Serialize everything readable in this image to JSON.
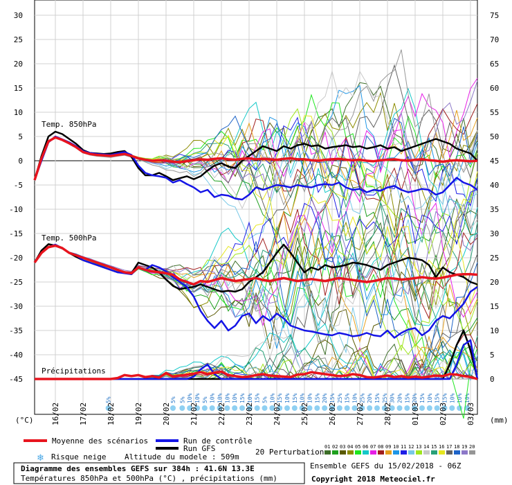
{
  "chart_data": {
    "type": "line",
    "left_axis": {
      "unit": "(°C)",
      "ticks": [
        30,
        25,
        20,
        15,
        10,
        5,
        0,
        -5,
        -10,
        -15,
        -20,
        -25,
        -30,
        -35,
        -40,
        -45
      ]
    },
    "right_axis": {
      "unit": "(mm)",
      "ticks": [
        75,
        70,
        65,
        60,
        55,
        50,
        45,
        40,
        35,
        30,
        25,
        20,
        15,
        10,
        5,
        0
      ]
    },
    "x_axis": {
      "ticks": [
        "16/02",
        "17/02",
        "18/02",
        "19/02",
        "20/02",
        "21/02",
        "22/02",
        "23/02",
        "24/02",
        "25/02",
        "26/02",
        "27/02",
        "28/02",
        "01/03",
        "02/03",
        "03/03"
      ]
    },
    "panel_labels": {
      "t850": "Temp. 850hPa",
      "t500": "Temp. 500hPa",
      "precip": "Précipitations"
    },
    "x_hours": [
      0,
      6,
      12,
      18,
      24,
      30,
      36,
      42,
      48,
      54,
      60,
      66,
      72,
      78,
      84,
      90,
      96,
      102,
      108,
      114,
      120,
      126,
      132,
      138,
      144,
      150,
      156,
      162,
      168,
      174,
      180,
      186,
      192,
      198,
      204,
      210,
      216,
      222,
      228,
      234,
      240,
      246,
      252,
      258,
      264,
      270,
      276,
      282,
      288,
      294,
      300,
      306,
      312,
      318,
      324,
      330,
      336,
      342,
      348,
      354,
      360,
      366,
      372,
      378,
      384
    ],
    "series": [
      {
        "name": "Moyenne des scénarios",
        "panel": "t850",
        "color": "#e8141e",
        "values": [
          -4,
          0.5,
          4,
          4.8,
          4.3,
          3.6,
          2.8,
          1.8,
          1.4,
          1.2,
          1.1,
          1,
          1.2,
          1.4,
          1,
          0.5,
          0.2,
          0,
          0.1,
          0,
          -0.2,
          -0.3,
          -0.1,
          0.1,
          0.3,
          0.2,
          0.4,
          0.5,
          0.3,
          0.2,
          0.4,
          0.5,
          0.3,
          0.4,
          0.3,
          0.2,
          0.4,
          0.5,
          0.3,
          0.3,
          0.1,
          0,
          0.2,
          0.3,
          0.4,
          0.2,
          0.1,
          0.2,
          0,
          -0.1,
          0.1,
          0.2,
          0.3,
          0.1,
          0,
          0.2,
          0.3,
          0.1,
          0,
          -0.2,
          0,
          0.1,
          0,
          -0.1,
          0
        ]
      },
      {
        "name": "Run de contrôle",
        "panel": "t850",
        "color": "#1414e6",
        "values": [
          -4,
          0,
          3.8,
          5,
          4.4,
          3.8,
          3,
          2,
          1.6,
          1.4,
          1.3,
          1.2,
          1.5,
          1.8,
          1.2,
          -1,
          -2.5,
          -3,
          -3.2,
          -3.5,
          -4.5,
          -4,
          -4.8,
          -5.5,
          -6.5,
          -6,
          -7.5,
          -7,
          -7.2,
          -7.8,
          -8,
          -7,
          -5.5,
          -6,
          -5.5,
          -5,
          -5.2,
          -5.5,
          -5,
          -5.3,
          -5.5,
          -5,
          -4.8,
          -5,
          -4.5,
          -5.5,
          -6,
          -5.8,
          -6.5,
          -6,
          -6.2,
          -5.5,
          -5.2,
          -6,
          -6.5,
          -6.2,
          -5.8,
          -6,
          -7,
          -6.5,
          -5,
          -3.5,
          -4.5,
          -5,
          -6
        ]
      },
      {
        "name": "Run GFS",
        "panel": "t850",
        "color": "#000000",
        "values": [
          -4,
          1,
          5,
          6,
          5.5,
          4.5,
          3.5,
          2.2,
          1.6,
          1.5,
          1.4,
          1.5,
          1.8,
          2,
          0.8,
          -1.5,
          -3,
          -3,
          -2.5,
          -3.2,
          -4,
          -3.6,
          -3.2,
          -3.8,
          -3.2,
          -2,
          -1,
          -0.5,
          -1.2,
          -1.5,
          0,
          1,
          2,
          3,
          2.5,
          2,
          3,
          2.5,
          3.2,
          3.5,
          3,
          3.2,
          2.5,
          2.8,
          3,
          3.2,
          2.8,
          3,
          2.5,
          2.8,
          3.2,
          2.5,
          2.8,
          2,
          2.5,
          3,
          3.5,
          4,
          4.5,
          4,
          3.5,
          2.5,
          2,
          1.5,
          0
        ]
      },
      {
        "name": "Moyenne des scénarios",
        "panel": "t500",
        "color": "#e8141e",
        "values": [
          -21,
          -19,
          -17.8,
          -17.5,
          -18,
          -19,
          -19.5,
          -20,
          -20.5,
          -21,
          -21.5,
          -22,
          -22.5,
          -23,
          -23.2,
          -22,
          -22.5,
          -22.8,
          -23,
          -23.2,
          -23.5,
          -24.5,
          -25,
          -25.5,
          -24.8,
          -25,
          -24.6,
          -24.2,
          -24.5,
          -24.8,
          -24.6,
          -24.4,
          -24.2,
          -24.6,
          -24.8,
          -24.5,
          -24.2,
          -24.5,
          -24.8,
          -24.6,
          -24.4,
          -24.6,
          -24.8,
          -24.5,
          -24.2,
          -24.4,
          -24.6,
          -24.8,
          -25,
          -24.8,
          -24.5,
          -24.2,
          -24.3,
          -24.5,
          -24.4,
          -24.2,
          -24,
          -24.2,
          -24.3,
          -24.1,
          -23.8,
          -23.5,
          -23.4,
          -23.4,
          -23.5
        ]
      },
      {
        "name": "Run de contrôle",
        "panel": "t500",
        "color": "#1414e6",
        "values": [
          -21,
          -19,
          -17.8,
          -17.3,
          -18,
          -19,
          -19.5,
          -20.5,
          -21,
          -21.5,
          -22,
          -22.5,
          -23,
          -23.2,
          -23.4,
          -22,
          -22.5,
          -21.5,
          -22,
          -22.8,
          -24,
          -25,
          -26,
          -28,
          -31,
          -33,
          -34.5,
          -33,
          -35,
          -34,
          -32,
          -31.5,
          -33.5,
          -32,
          -33,
          -31.5,
          -32.5,
          -34,
          -34.5,
          -35,
          -35.2,
          -35.5,
          -35.8,
          -36,
          -35.5,
          -35.8,
          -36.2,
          -36,
          -35.5,
          -36,
          -36.2,
          -35,
          -36.5,
          -35.5,
          -34.8,
          -34.5,
          -36,
          -35,
          -33,
          -32,
          -32.5,
          -31,
          -29.5,
          -27,
          -26
        ]
      },
      {
        "name": "Run GFS",
        "panel": "t500",
        "color": "#000000",
        "values": [
          -21,
          -18.5,
          -17.2,
          -17.5,
          -18,
          -19,
          -19.8,
          -20.5,
          -21,
          -21.5,
          -22,
          -22.5,
          -23,
          -23,
          -23.2,
          -21,
          -21.5,
          -22,
          -23,
          -24.5,
          -25.8,
          -26.5,
          -26.2,
          -26,
          -25.5,
          -26,
          -26.5,
          -27,
          -26.8,
          -27,
          -26.5,
          -25,
          -24,
          -23,
          -21,
          -19,
          -17.3,
          -19,
          -21,
          -23,
          -22,
          -22.5,
          -21.5,
          -22,
          -21.8,
          -21.5,
          -21,
          -21.2,
          -21.5,
          -22,
          -22.5,
          -21.5,
          -21,
          -20.5,
          -20,
          -20.2,
          -20.5,
          -21.5,
          -24,
          -22,
          -23,
          -23.5,
          -24,
          -25,
          -25.5
        ]
      },
      {
        "name": "Moyenne des scénarios",
        "panel": "precip",
        "color": "#e8141e",
        "values": [
          0,
          0,
          0,
          0,
          0,
          0,
          0,
          0,
          0,
          0,
          0,
          0,
          0.2,
          0.8,
          0.6,
          0.8,
          0.4,
          0.6,
          0.3,
          1.2,
          0.5,
          0.7,
          0.9,
          1.1,
          1.4,
          1.0,
          1.3,
          1.5,
          0.8,
          0.6,
          0.4,
          0.5,
          0.8,
          1.0,
          0.7,
          0.6,
          0.5,
          0.4,
          0.9,
          1.0,
          1.4,
          1.2,
          1.0,
          0.8,
          0.6,
          0.7,
          1.0,
          0.8,
          0.4,
          0.3,
          0.5,
          0.7,
          0.4,
          0.6,
          0.3,
          0.5,
          0.3,
          0.5,
          0.7,
          0.6,
          1.0,
          0.9,
          0.6,
          0.4,
          0
        ]
      },
      {
        "name": "Run de contrôle",
        "panel": "precip",
        "color": "#1414e6",
        "values": [
          0,
          0,
          0,
          0,
          0,
          0,
          0,
          0,
          0,
          0,
          0,
          0,
          0,
          0,
          0,
          0,
          0,
          0,
          0,
          0,
          0,
          0,
          0,
          0.5,
          2,
          3,
          1,
          0,
          0,
          0,
          0,
          0,
          0,
          0,
          0,
          0,
          0,
          0,
          0,
          0,
          0,
          0,
          0,
          0,
          0,
          0,
          0,
          0,
          0,
          0,
          0,
          0,
          0,
          0,
          0,
          0,
          0,
          0,
          0,
          0,
          0,
          3,
          7,
          8,
          0
        ]
      },
      {
        "name": "Run GFS",
        "panel": "precip",
        "color": "#000000",
        "values": [
          0,
          0,
          0,
          0,
          0,
          0,
          0,
          0,
          0,
          0,
          0,
          0,
          0,
          0,
          0,
          0,
          0,
          0,
          0,
          0,
          0,
          0,
          0,
          0,
          0,
          0,
          0,
          0,
          0,
          0,
          0,
          0,
          0,
          0,
          0,
          0,
          0,
          0,
          0,
          0,
          0,
          0,
          0,
          0,
          0,
          0,
          0,
          0,
          0,
          0,
          0,
          0,
          0,
          0,
          0,
          0,
          0,
          0,
          0,
          0,
          3,
          7,
          10,
          6,
          0
        ]
      }
    ],
    "snow_risk": [
      "5%",
      "5%",
      "5%",
      "10%",
      "10%",
      "5%",
      "10%",
      "10%",
      "10%",
      "10%",
      "15%",
      "10%",
      "15%",
      "5%",
      "10%",
      "15%",
      "10%",
      "15%",
      "10%",
      "10%",
      "15%",
      "20%",
      "15%",
      "25%",
      "15%",
      "10%",
      "25%",
      "20%",
      "15%",
      "25%",
      "30%",
      "20%",
      "15%",
      "20%",
      "15%",
      "10%",
      "15%",
      "15%",
      "10%",
      "10%",
      "10%"
    ],
    "ticks_note": "Altitude du modele : 509m"
  },
  "legend": {
    "mean": "Moyenne des scénarios",
    "control": "Run de contrôle",
    "gfs": "Run GFS",
    "perturbations": "20 Perturbations",
    "snow": "Risque neige",
    "altitude": "Altitude du modele : 509m",
    "pert_numbers": [
      "01",
      "02",
      "03",
      "04",
      "05",
      "06",
      "07",
      "08",
      "09",
      "10",
      "11",
      "12",
      "13",
      "14",
      "15",
      "16",
      "17",
      "18",
      "19",
      "20"
    ],
    "pert_colors": [
      "#3c6e28",
      "#1ea01e",
      "#5a5a00",
      "#8c8c00",
      "#1ee61e",
      "#14c8c8",
      "#e61ee6",
      "#a01e1e",
      "#e6a01e",
      "#1e96e6",
      "#1e1ee6",
      "#78c8e6",
      "#a0e61e",
      "#c8c8c8",
      "#28a078",
      "#e6e61e",
      "#646464",
      "#1e64c8",
      "#8c78c8",
      "#969696"
    ]
  },
  "footer": {
    "title": "Diagramme des ensembles GEFS sur 384h : 41.6N 13.3E",
    "subtitle": "Températures 850hPa et 500hPa (°C) , précipitations (mm)",
    "run": "Ensemble GEFS du 15/02/2018 - 06Z",
    "copyright": "Copyright 2018 Meteociel.fr"
  }
}
